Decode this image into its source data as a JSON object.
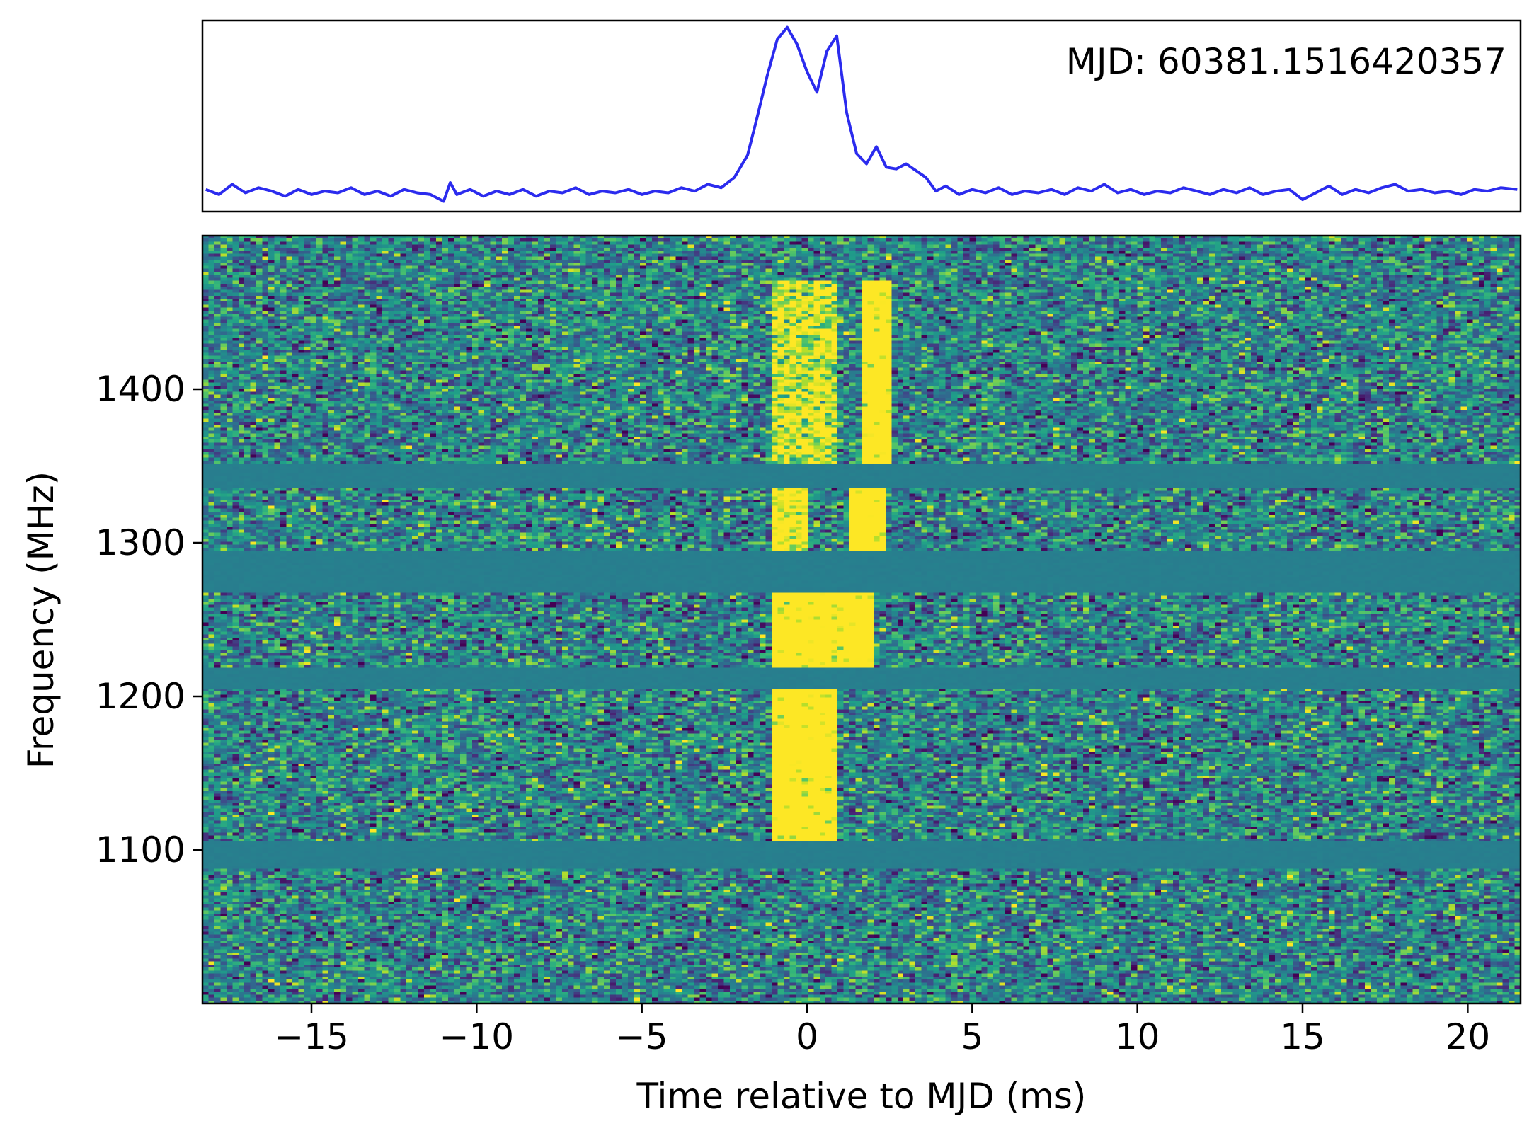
{
  "chart_data": [
    {
      "panel": "pulse-profile",
      "type": "line",
      "annotation": "MJD: 60381.1516420357",
      "x_range_ms": [
        -18.3,
        21.6
      ],
      "axes_ticks": false,
      "series": [
        {
          "color": "#2b2bee",
          "x_ms": [
            -18.2,
            -17.8,
            -17.4,
            -17.0,
            -16.6,
            -16.2,
            -15.8,
            -15.4,
            -15.0,
            -14.6,
            -14.2,
            -13.8,
            -13.4,
            -13.0,
            -12.6,
            -12.2,
            -11.8,
            -11.4,
            -11.0,
            -10.8,
            -10.6,
            -10.2,
            -9.8,
            -9.4,
            -9.0,
            -8.6,
            -8.2,
            -7.8,
            -7.4,
            -7.0,
            -6.6,
            -6.2,
            -5.8,
            -5.4,
            -5.0,
            -4.6,
            -4.2,
            -3.8,
            -3.4,
            -3.0,
            -2.6,
            -2.2,
            -1.8,
            -1.5,
            -1.2,
            -0.9,
            -0.6,
            -0.3,
            0.0,
            0.3,
            0.6,
            0.9,
            1.2,
            1.5,
            1.8,
            2.1,
            2.4,
            2.7,
            3.0,
            3.3,
            3.6,
            3.9,
            4.2,
            4.6,
            5.0,
            5.4,
            5.8,
            6.2,
            6.6,
            7.0,
            7.4,
            7.8,
            8.2,
            8.6,
            9.0,
            9.4,
            9.8,
            10.2,
            10.6,
            11.0,
            11.4,
            11.8,
            12.2,
            12.6,
            13.0,
            13.4,
            13.8,
            14.2,
            14.6,
            15.0,
            15.4,
            15.8,
            16.2,
            16.6,
            17.0,
            17.4,
            17.8,
            18.2,
            18.6,
            19.0,
            19.4,
            19.8,
            20.2,
            20.6,
            21.0,
            21.5
          ],
          "intensity": [
            0.05,
            0.02,
            0.08,
            0.03,
            0.06,
            0.04,
            0.01,
            0.05,
            0.02,
            0.04,
            0.03,
            0.06,
            0.02,
            0.04,
            0.01,
            0.05,
            0.03,
            0.02,
            -0.02,
            0.09,
            0.02,
            0.05,
            0.01,
            0.04,
            0.02,
            0.05,
            0.01,
            0.04,
            0.03,
            0.06,
            0.02,
            0.04,
            0.03,
            0.05,
            0.02,
            0.04,
            0.03,
            0.06,
            0.04,
            0.08,
            0.06,
            0.12,
            0.25,
            0.48,
            0.72,
            0.93,
            1.0,
            0.9,
            0.74,
            0.62,
            0.86,
            0.95,
            0.5,
            0.26,
            0.2,
            0.3,
            0.18,
            0.17,
            0.2,
            0.16,
            0.12,
            0.04,
            0.07,
            0.02,
            0.05,
            0.03,
            0.06,
            0.02,
            0.04,
            0.03,
            0.05,
            0.02,
            0.06,
            0.04,
            0.08,
            0.03,
            0.05,
            0.02,
            0.04,
            0.03,
            0.06,
            0.04,
            0.02,
            0.05,
            0.03,
            0.06,
            0.02,
            0.04,
            0.05,
            -0.01,
            0.03,
            0.07,
            0.02,
            0.05,
            0.03,
            0.06,
            0.08,
            0.04,
            0.05,
            0.03,
            0.04,
            0.02,
            0.05,
            0.04,
            0.06,
            0.05
          ]
        }
      ]
    },
    {
      "panel": "dynamic-spectrum",
      "type": "heatmap",
      "colormap": "viridis",
      "xlabel": "Time relative to MJD (ms)",
      "ylabel": "Frequency (MHz)",
      "xlim": [
        -18.3,
        21.6
      ],
      "ylim": [
        1000,
        1500
      ],
      "x_ticks": [
        -15,
        -10,
        -5,
        0,
        5,
        10,
        15,
        20
      ],
      "x_tick_labels": [
        "−15",
        "−10",
        "−5",
        "0",
        "5",
        "10",
        "15",
        "20"
      ],
      "y_ticks": [
        1100,
        1200,
        1300,
        1400
      ],
      "y_tick_labels": [
        "1100",
        "1200",
        "1300",
        "1400"
      ],
      "masked_bands_mhz": [
        [
          1088,
          1105
        ],
        [
          1205,
          1218
        ],
        [
          1268,
          1295
        ],
        [
          1335,
          1352
        ]
      ],
      "burst_regions": [
        {
          "t_ms": [
            -1.0,
            1.0
          ],
          "f_mhz": [
            1100,
            1210
          ],
          "level": 1.0
        },
        {
          "t_ms": [
            -1.0,
            2.0
          ],
          "f_mhz": [
            1218,
            1268
          ],
          "level": 0.95
        },
        {
          "t_ms": [
            -1.0,
            0.0
          ],
          "f_mhz": [
            1295,
            1335
          ],
          "level": 0.7
        },
        {
          "t_ms": [
            1.2,
            2.4
          ],
          "f_mhz": [
            1295,
            1335
          ],
          "level": 1.0
        },
        {
          "t_ms": [
            1.6,
            2.5
          ],
          "f_mhz": [
            1352,
            1470
          ],
          "level": 1.0
        },
        {
          "t_ms": [
            -1.0,
            1.0
          ],
          "f_mhz": [
            1352,
            1470
          ],
          "level": 0.55
        }
      ]
    }
  ]
}
